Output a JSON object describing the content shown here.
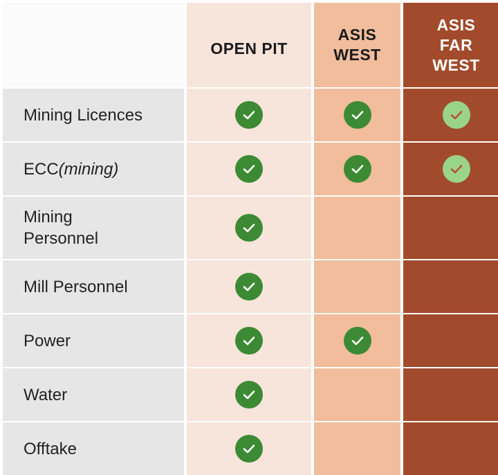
{
  "columns": [
    "OPEN PIT",
    "ASIS\nWEST",
    "ASIS\nFAR\nWEST"
  ],
  "rows": [
    {
      "label": "Mining Licences",
      "label_suffix": "",
      "open_pit": true,
      "asis_west": true,
      "asis_far_west": true
    },
    {
      "label": "ECC ",
      "label_suffix": "(mining)",
      "open_pit": true,
      "asis_west": true,
      "asis_far_west": true
    },
    {
      "label": "Mining\nPersonnel",
      "label_suffix": "",
      "open_pit": true,
      "asis_west": false,
      "asis_far_west": false
    },
    {
      "label": "Mill Personnel",
      "label_suffix": "",
      "open_pit": true,
      "asis_west": false,
      "asis_far_west": false
    },
    {
      "label": "Power",
      "label_suffix": "",
      "open_pit": true,
      "asis_west": true,
      "asis_far_west": false
    },
    {
      "label": "Water",
      "label_suffix": "",
      "open_pit": true,
      "asis_west": false,
      "asis_far_west": false
    },
    {
      "label": "Offtake",
      "label_suffix": "",
      "open_pit": true,
      "asis_west": false,
      "asis_far_west": false
    }
  ],
  "colors": {
    "open_pit_bg": "#f7e5dc",
    "asis_west_bg": "#f1bd9c",
    "asis_far_west_bg": "#a24b2c",
    "label_bg": "#e6e6e6",
    "check_dark": "#3d8a34",
    "check_light": "#9ad48a"
  },
  "icons": {
    "check": "check-circle-icon"
  }
}
